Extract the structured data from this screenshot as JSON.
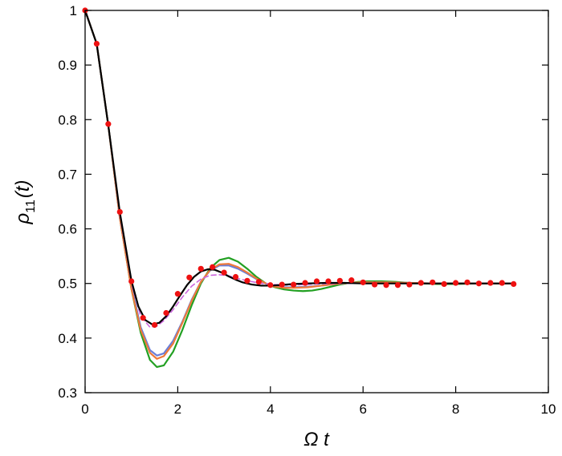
{
  "chart_data": {
    "type": "line",
    "xlabel": "Ω t",
    "ylabel_main": "ρ",
    "ylabel_sub": "11",
    "ylabel_arg": "(t)",
    "xlim": [
      0,
      10
    ],
    "ylim": [
      0.3,
      1.0
    ],
    "xticks": [
      0,
      2,
      4,
      6,
      8,
      10
    ],
    "xtick_labels": [
      "0",
      "2",
      "4",
      "6",
      "8",
      "10"
    ],
    "yticks": [
      0.3,
      0.4,
      0.5,
      0.6,
      0.7,
      0.8,
      0.9,
      1.0
    ],
    "ytick_labels": [
      "0.3",
      "0.4",
      "0.5",
      "0.6",
      "0.7",
      "0.8",
      "0.9",
      "1"
    ],
    "grid": false,
    "series": [
      {
        "style": "line",
        "color": "#22a022",
        "x": [
          0,
          0.25,
          0.5,
          0.75,
          1.0,
          1.2,
          1.4,
          1.55,
          1.7,
          1.9,
          2.1,
          2.3,
          2.5,
          2.7,
          2.9,
          3.1,
          3.3,
          3.5,
          3.7,
          3.9,
          4.1,
          4.3,
          4.5,
          4.7,
          4.9,
          5.1,
          5.3,
          5.5,
          5.7,
          5.9,
          6.1,
          6.4,
          6.7,
          7.0,
          7.3,
          7.6,
          8.0,
          8.5,
          9.0,
          9.25
        ],
        "y": [
          1.0,
          0.939,
          0.79,
          0.62,
          0.49,
          0.41,
          0.36,
          0.347,
          0.35,
          0.375,
          0.415,
          0.46,
          0.5,
          0.528,
          0.543,
          0.547,
          0.54,
          0.527,
          0.512,
          0.5,
          0.493,
          0.489,
          0.487,
          0.486,
          0.487,
          0.49,
          0.494,
          0.498,
          0.501,
          0.503,
          0.504,
          0.504,
          0.503,
          0.501,
          0.5,
          0.499,
          0.499,
          0.5,
          0.5,
          0.5
        ]
      },
      {
        "style": "line",
        "color": "#6a7ed8",
        "x": [
          0,
          0.25,
          0.5,
          0.75,
          1.0,
          1.2,
          1.4,
          1.55,
          1.7,
          1.9,
          2.1,
          2.3,
          2.5,
          2.7,
          2.9,
          3.1,
          3.3,
          3.5,
          3.7,
          3.9,
          4.1,
          4.3,
          4.5,
          4.8,
          5.1,
          5.4,
          5.7,
          6.0,
          6.5,
          7.0,
          7.5,
          8.0,
          8.5,
          9.0,
          9.25
        ],
        "y": [
          1.0,
          0.939,
          0.79,
          0.62,
          0.495,
          0.42,
          0.378,
          0.368,
          0.372,
          0.395,
          0.43,
          0.47,
          0.503,
          0.524,
          0.533,
          0.533,
          0.527,
          0.518,
          0.508,
          0.5,
          0.495,
          0.493,
          0.493,
          0.494,
          0.496,
          0.499,
          0.501,
          0.502,
          0.502,
          0.501,
          0.5,
          0.5,
          0.5,
          0.5,
          0.5
        ]
      },
      {
        "style": "line",
        "color": "#ee7a3a",
        "x": [
          0,
          0.25,
          0.5,
          0.75,
          1.0,
          1.2,
          1.4,
          1.55,
          1.7,
          1.9,
          2.1,
          2.3,
          2.5,
          2.7,
          2.9,
          3.1,
          3.3,
          3.5,
          3.7,
          3.9,
          4.1,
          4.3,
          4.5,
          4.8,
          5.1,
          5.4,
          5.7,
          6.0,
          6.5,
          7.0,
          7.5,
          8.0,
          8.5,
          9.0,
          9.25
        ],
        "y": [
          1.0,
          0.939,
          0.79,
          0.62,
          0.49,
          0.415,
          0.373,
          0.362,
          0.367,
          0.39,
          0.428,
          0.468,
          0.503,
          0.525,
          0.535,
          0.536,
          0.53,
          0.52,
          0.509,
          0.5,
          0.494,
          0.492,
          0.492,
          0.493,
          0.496,
          0.499,
          0.501,
          0.502,
          0.502,
          0.501,
          0.5,
          0.5,
          0.5,
          0.5,
          0.5
        ]
      },
      {
        "style": "dashed",
        "color": "#cc66dd",
        "x": [
          0,
          0.25,
          0.5,
          0.75,
          1.0,
          1.2,
          1.4,
          1.55,
          1.7,
          1.9,
          2.1,
          2.3,
          2.5,
          2.7,
          2.9,
          3.1,
          3.3,
          3.5,
          3.8,
          4.1,
          4.4,
          4.7,
          5.0,
          5.5,
          6.0,
          6.5,
          7.0,
          8.0,
          9.0,
          9.25
        ],
        "y": [
          1.0,
          0.939,
          0.79,
          0.625,
          0.5,
          0.44,
          0.42,
          0.422,
          0.432,
          0.452,
          0.475,
          0.495,
          0.508,
          0.515,
          0.516,
          0.514,
          0.509,
          0.505,
          0.5,
          0.498,
          0.497,
          0.498,
          0.499,
          0.5,
          0.5,
          0.5,
          0.5,
          0.5,
          0.5,
          0.5
        ]
      },
      {
        "style": "line",
        "color": "#000000",
        "x": [
          0,
          0.25,
          0.5,
          0.75,
          1.0,
          1.15,
          1.3,
          1.45,
          1.6,
          1.75,
          1.9,
          2.05,
          2.2,
          2.35,
          2.5,
          2.65,
          2.8,
          2.95,
          3.1,
          3.25,
          3.4,
          3.6,
          3.8,
          4.0,
          4.2,
          4.5,
          4.8,
          5.2,
          5.6,
          6.0,
          6.5,
          7.0,
          7.5,
          8.0,
          8.5,
          9.0,
          9.25
        ],
        "y": [
          1.0,
          0.939,
          0.79,
          0.63,
          0.505,
          0.458,
          0.433,
          0.425,
          0.428,
          0.44,
          0.458,
          0.478,
          0.497,
          0.512,
          0.522,
          0.526,
          0.525,
          0.52,
          0.513,
          0.507,
          0.502,
          0.498,
          0.496,
          0.496,
          0.497,
          0.499,
          0.5,
          0.501,
          0.501,
          0.5,
          0.5,
          0.5,
          0.5,
          0.5,
          0.5,
          0.5,
          0.5
        ]
      },
      {
        "style": "points",
        "color": "#ee1111",
        "x": [
          0,
          0.25,
          0.5,
          0.75,
          1.0,
          1.25,
          1.5,
          1.75,
          2.0,
          2.25,
          2.5,
          2.75,
          3.0,
          3.25,
          3.5,
          3.75,
          4.0,
          4.25,
          4.5,
          4.75,
          5.0,
          5.25,
          5.5,
          5.75,
          6.0,
          6.25,
          6.5,
          6.75,
          7.0,
          7.25,
          7.5,
          7.75,
          8.0,
          8.25,
          8.5,
          8.75,
          9.0,
          9.25
        ],
        "y": [
          1.0,
          0.939,
          0.792,
          0.631,
          0.504,
          0.437,
          0.424,
          0.446,
          0.481,
          0.511,
          0.527,
          0.53,
          0.52,
          0.512,
          0.505,
          0.503,
          0.497,
          0.498,
          0.498,
          0.501,
          0.504,
          0.504,
          0.505,
          0.506,
          0.502,
          0.498,
          0.497,
          0.497,
          0.498,
          0.501,
          0.502,
          0.499,
          0.501,
          0.502,
          0.5,
          0.501,
          0.501,
          0.499
        ]
      }
    ]
  }
}
